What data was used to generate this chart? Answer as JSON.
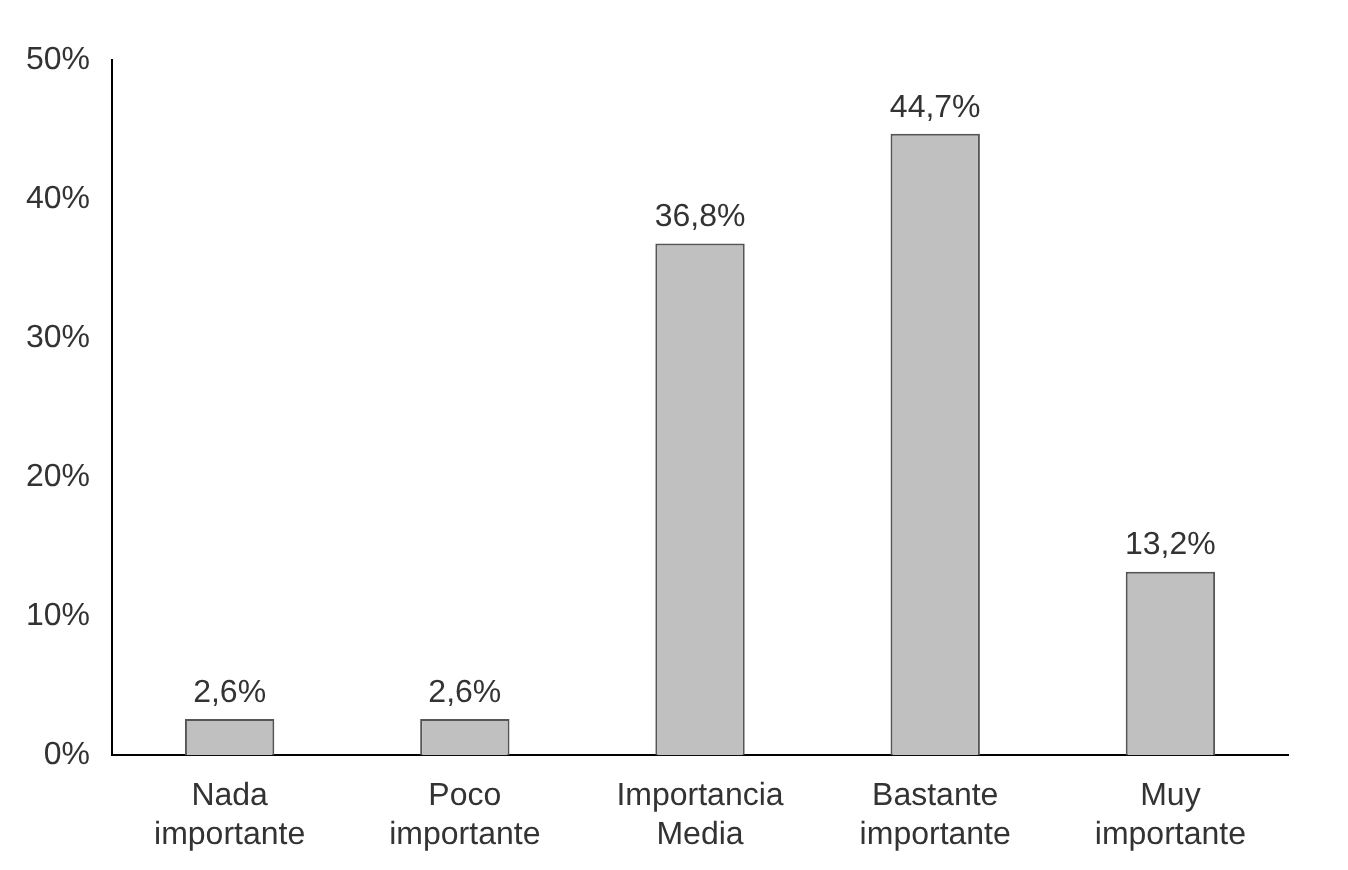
{
  "chart_data": {
    "type": "bar",
    "categories": [
      "Nada importante",
      "Poco importante",
      "Importancia Media",
      "Bastante importante",
      "Muy importante"
    ],
    "values": [
      2.6,
      2.6,
      36.8,
      44.7,
      13.2
    ],
    "value_labels": [
      "2,6%",
      "2,6%",
      "36,8%",
      "44,7%",
      "13,2%"
    ],
    "color": "#c0c0c0",
    "ylim": [
      0,
      50
    ],
    "yticks": [
      {
        "value": 0,
        "label": "0%"
      },
      {
        "value": 10,
        "label": "10%"
      },
      {
        "value": 20,
        "label": "20%"
      },
      {
        "value": 30,
        "label": "30%"
      },
      {
        "value": 40,
        "label": "40%"
      },
      {
        "value": 50,
        "label": "50%"
      }
    ],
    "grid": false,
    "legend": false
  }
}
